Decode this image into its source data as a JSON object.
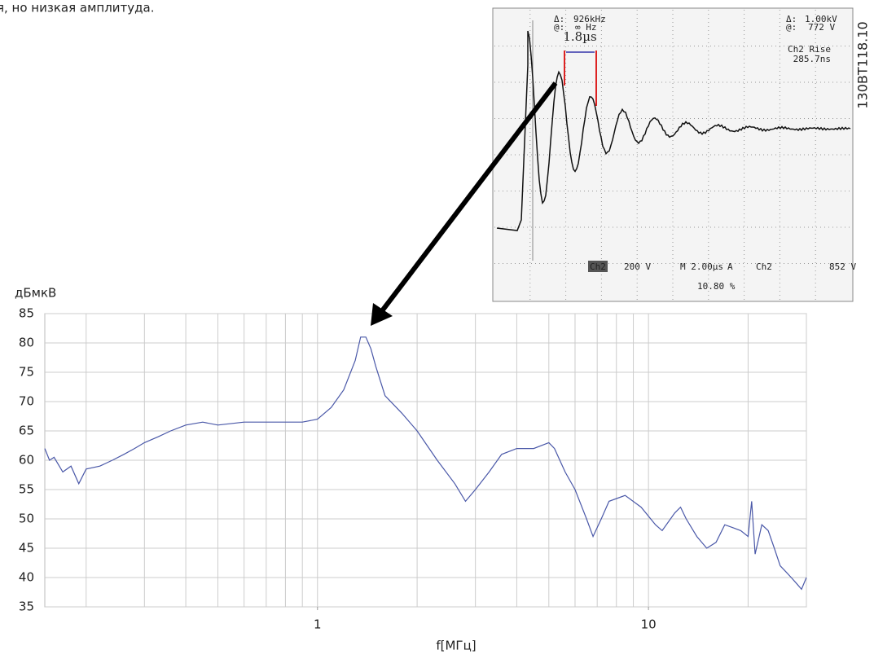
{
  "caption": "я, но низкая амплитуда.",
  "chart_data": {
    "type": "line",
    "y_label": "дБмкВ",
    "x_label": "f[МГц]",
    "log_x": true,
    "grid": true,
    "xlim": [
      0.15,
      30
    ],
    "ylim": [
      35,
      85
    ],
    "xticks": [
      1,
      10
    ],
    "xgrid": [
      0.2,
      0.3,
      0.4,
      0.5,
      0.6,
      0.7,
      0.8,
      0.9,
      1,
      2,
      3,
      4,
      5,
      6,
      7,
      8,
      9,
      10,
      20,
      30
    ],
    "yticks": [
      35,
      40,
      45,
      50,
      55,
      60,
      65,
      70,
      75,
      80,
      85
    ],
    "x": [
      0.15,
      0.155,
      0.16,
      0.17,
      0.18,
      0.19,
      0.2,
      0.22,
      0.24,
      0.26,
      0.28,
      0.3,
      0.33,
      0.36,
      0.4,
      0.45,
      0.5,
      0.6,
      0.7,
      0.8,
      0.9,
      1.0,
      1.1,
      1.2,
      1.3,
      1.35,
      1.4,
      1.45,
      1.5,
      1.6,
      1.8,
      2.0,
      2.3,
      2.6,
      2.8,
      3.0,
      3.3,
      3.6,
      4.0,
      4.5,
      5.0,
      5.2,
      5.6,
      6.0,
      6.5,
      6.8,
      7.2,
      7.6,
      8.5,
      9.5,
      10.5,
      11,
      12,
      12.5,
      13,
      14,
      15,
      16,
      17,
      18,
      19,
      20,
      20.5,
      21,
      22,
      23,
      24,
      25,
      26,
      27,
      28,
      29,
      30
    ],
    "series": [
      {
        "color": "#4a58a8",
        "values": [
          62,
          60,
          60.5,
          58,
          59,
          56,
          58.5,
          59,
          60,
          61,
          62,
          63,
          64,
          65,
          66,
          66.5,
          66,
          66.5,
          66.5,
          66.5,
          66.5,
          67,
          69,
          72,
          77,
          81,
          81,
          79,
          76,
          71,
          68,
          65,
          60,
          56,
          53,
          55,
          58,
          61,
          62,
          62,
          63,
          62,
          58,
          55,
          50,
          47,
          50,
          53,
          54,
          52,
          49,
          48,
          51,
          52,
          50,
          47,
          45,
          46,
          49,
          48.5,
          48,
          47,
          53,
          44,
          49,
          48,
          45,
          42,
          41,
          40,
          39,
          38,
          40
        ]
      }
    ]
  },
  "inset": {
    "labels": [
      "Δ:",
      "926kHz",
      "Δ:",
      "1.00kV",
      "@:",
      "∞ Hz",
      "@:",
      "772 V",
      "Ch2 Rise",
      "285.7ns",
      "1.8µs",
      "Ch2",
      "200 V",
      "M 2.00µs",
      "A",
      "Ch2",
      "852 V",
      "10.80 %",
      "130BT118.10"
    ]
  }
}
